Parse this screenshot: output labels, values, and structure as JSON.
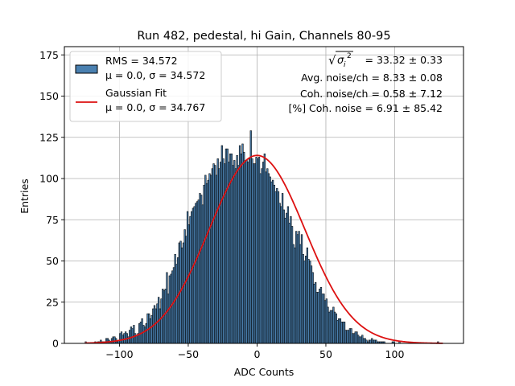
{
  "chart_data": {
    "type": "histogram",
    "title": "Run 482, pedestal, hi Gain, Channels 80-95",
    "xlabel": "ADC Counts",
    "ylabel": "Entries",
    "xlim": [
      -140,
      150
    ],
    "ylim": [
      0,
      180
    ],
    "xticks": [
      -100,
      -50,
      0,
      50,
      100
    ],
    "yticks": [
      0,
      25,
      50,
      75,
      100,
      125,
      150,
      175
    ],
    "grid": true,
    "legend_position": "top-left",
    "bin_range": [
      -125,
      135
    ],
    "bin_width": 1,
    "histogram": {
      "name_line1": "RMS = 34.572",
      "name_line2": "μ = 0.0, σ = 34.572",
      "face_color": "#4a80b0",
      "edge_color": "#000000",
      "values": [
        1,
        0,
        0,
        0,
        0,
        0,
        0,
        1,
        0,
        1,
        1,
        2,
        1,
        1,
        1,
        3,
        3,
        2,
        1,
        3,
        4,
        4,
        3,
        1,
        2,
        6,
        7,
        5,
        6,
        7,
        6,
        4,
        8,
        10,
        9,
        11,
        6,
        5,
        6,
        12,
        13,
        15,
        11,
        10,
        12,
        18,
        18,
        15,
        17,
        21,
        23,
        21,
        24,
        28,
        21,
        27,
        33,
        32,
        33,
        43,
        30,
        41,
        42,
        44,
        46,
        54,
        48,
        52,
        61,
        62,
        58,
        61,
        69,
        65,
        80,
        72,
        77,
        80,
        82,
        83,
        85,
        86,
        87,
        91,
        90,
        84,
        96,
        102,
        97,
        99,
        103,
        102,
        106,
        109,
        108,
        102,
        112,
        106,
        110,
        120,
        112,
        109,
        118,
        118,
        110,
        115,
        115,
        108,
        111,
        106,
        114,
        108,
        120,
        115,
        121,
        116,
        111,
        111,
        110,
        112,
        129,
        112,
        109,
        109,
        113,
        112,
        113,
        103,
        106,
        110,
        115,
        104,
        106,
        103,
        101,
        98,
        99,
        96,
        92,
        94,
        92,
        85,
        83,
        91,
        81,
        76,
        79,
        83,
        73,
        77,
        71,
        60,
        58,
        68,
        66,
        68,
        60,
        66,
        54,
        50,
        53,
        58,
        51,
        50,
        47,
        43,
        36,
        37,
        31,
        31,
        33,
        34,
        30,
        30,
        26,
        27,
        22,
        19,
        20,
        20,
        22,
        19,
        18,
        14,
        15,
        15,
        13,
        13,
        13,
        8,
        8,
        8,
        9,
        9,
        6,
        6,
        7,
        7,
        5,
        4,
        4,
        5,
        3,
        3,
        2,
        1,
        2,
        2,
        3,
        2,
        2,
        2,
        1,
        1,
        1,
        1,
        1,
        1,
        0,
        0,
        0,
        0,
        0,
        1,
        1,
        0,
        0,
        0,
        1,
        0,
        0,
        0,
        0,
        0,
        0,
        0,
        0,
        0,
        0,
        0,
        0,
        0,
        0,
        0,
        0,
        0,
        0,
        0,
        0,
        0,
        0,
        0,
        0,
        0,
        0,
        0,
        1,
        0,
        0,
        0,
        0,
        0,
        0,
        0,
        0
      ]
    },
    "fit": {
      "name_line1": "Gaussian Fit",
      "name_line2": "μ = 0.0, σ = 34.767",
      "color": "#dd1111",
      "mu": 0.0,
      "sigma": 34.767,
      "amplitude": 114,
      "x_range": [
        -125,
        135
      ]
    },
    "annotations": [
      {
        "prefix": "√",
        "sigma_symbol": "σ",
        "subscript": "i",
        "superscript": "2",
        "text": " = 33.32 ± 0.33"
      },
      {
        "text": "Avg. noise/ch = 8.33 ± 0.08"
      },
      {
        "text": "Coh. noise/ch = 0.58 ± 7.12"
      },
      {
        "text": "[%] Coh. noise = 6.91 ± 85.42"
      }
    ]
  }
}
